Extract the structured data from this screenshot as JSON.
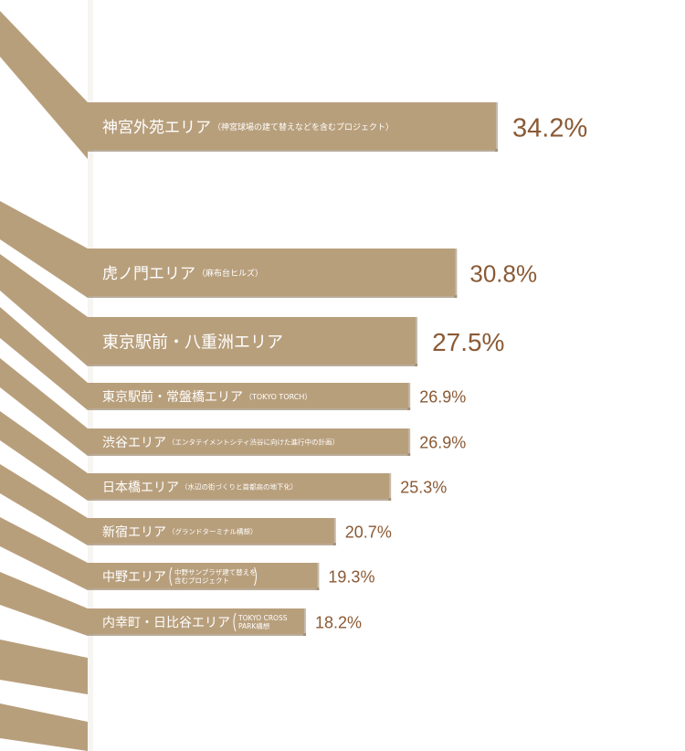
{
  "chart_data": {
    "type": "bar",
    "orientation": "horizontal",
    "colors": {
      "bar": "#b89f7c",
      "bar_shadow": "#8c7556",
      "value_text": "#8a5a35",
      "label_text": "#ffffff",
      "background": "#ffffff",
      "spine_panel": "#f7f5f2"
    },
    "categories": [
      {
        "name": "神宮外苑エリア",
        "note": "（神宮球場の建て替えなどを含むプロジェクト）",
        "value": 34.2,
        "value_label": "34.2%"
      },
      {
        "name": "虎ノ門エリア",
        "note": "（麻布台ヒルズ）",
        "value": 30.8,
        "value_label": "30.8%"
      },
      {
        "name": "東京駅前・八重洲エリア",
        "note": "",
        "value": 27.5,
        "value_label": "27.5%"
      },
      {
        "name": "東京駅前・常盤橋エリア",
        "note": "（TOKYO TORCH）",
        "value": 26.9,
        "value_label": "26.9%"
      },
      {
        "name": "渋谷エリア",
        "note": "（エンタテイメントシティ渋谷に向けた進行中の計画）",
        "value": 26.9,
        "value_label": "26.9%"
      },
      {
        "name": "日本橋エリア",
        "note": "（水辺の街づくりと首都高の地下化）",
        "value": 25.3,
        "value_label": "25.3%"
      },
      {
        "name": "新宿エリア",
        "note": "（グランドターミナル構想）",
        "value": 20.7,
        "value_label": "20.7%"
      },
      {
        "name": "中野エリア",
        "note_lines": [
          "中野サンプラザ建て替えを",
          "含むプロジェクト"
        ],
        "value": 19.3,
        "value_label": "19.3%"
      },
      {
        "name": "内幸町・日比谷エリア",
        "note_lines": [
          "TOKYO CROSS",
          "PARK構想"
        ],
        "value": 18.2,
        "value_label": "18.2%"
      }
    ]
  }
}
